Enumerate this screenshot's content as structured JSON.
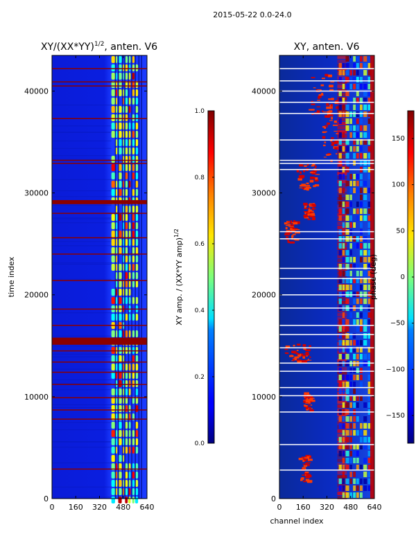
{
  "figure_title": "2015-05-22 0.0-24.0",
  "chart_data": [
    {
      "type": "heatmap",
      "title_main": "XY/(XX*YY)",
      "title_sup": "1/2",
      "title_suffix": ", anten. V6",
      "xlabel": "",
      "ylabel": "time index",
      "xlim": [
        0,
        640
      ],
      "ylim": [
        0,
        43500
      ],
      "x_ticks": [
        0,
        160,
        320,
        480,
        640
      ],
      "y_ticks": [
        0,
        10000,
        20000,
        30000,
        40000
      ],
      "x_tick_labels": [
        "0",
        "160",
        "320",
        "480",
        "640"
      ],
      "y_tick_labels": [
        "0",
        "10000",
        "20000",
        "30000",
        "40000"
      ],
      "colorbar": {
        "label_main": "XY amp. / (XX*YY amp)",
        "label_sup": "1/2",
        "range": [
          0.0,
          1.0
        ],
        "ticks": [
          0.0,
          0.2,
          0.4,
          0.6,
          0.8,
          1.0
        ],
        "tick_labels": [
          "0.0",
          "0.2",
          "0.4",
          "0.6",
          "0.8",
          "1.0"
        ]
      },
      "flagged_rows": [
        2900,
        7800,
        8700,
        9900,
        11200,
        12400,
        13400,
        14500,
        17000,
        18600,
        21400,
        24000,
        25600,
        28000,
        32900,
        33200,
        37300,
        40500,
        40900,
        42200
      ],
      "flagged_bands": [
        [
          15100,
          15800
        ],
        [
          28900,
          29300
        ]
      ]
    },
    {
      "type": "heatmap",
      "title_main": "XY, anten. V6",
      "xlabel": "channel index",
      "ylabel": "",
      "xlim": [
        0,
        640
      ],
      "ylim": [
        0,
        43500
      ],
      "x_ticks": [
        0,
        160,
        320,
        480,
        640
      ],
      "y_ticks": [
        0,
        10000,
        20000,
        30000,
        40000
      ],
      "x_tick_labels": [
        "0",
        "160",
        "320",
        "480",
        "640"
      ],
      "y_tick_labels": [
        "0",
        "10000",
        "20000",
        "30000",
        "40000"
      ],
      "colorbar": {
        "label_main": "phase (deg)",
        "range": [
          -180,
          180
        ],
        "ticks": [
          -150,
          -100,
          -50,
          0,
          50,
          100,
          150
        ],
        "tick_labels": [
          "−150",
          "−100",
          "−50",
          "0",
          "50",
          "100",
          "150"
        ]
      },
      "flagged_rows": [
        2800,
        5300,
        8500,
        10100,
        10900,
        12500,
        13300,
        14800,
        16100,
        17000,
        18700,
        20000,
        21600,
        22600,
        25500,
        26200,
        32300,
        32900,
        33200,
        35200,
        37800,
        38900,
        40000,
        41000,
        42200
      ],
      "red_patches": [
        [
          0.2,
          0.3,
          0.04,
          0.1
        ],
        [
          0.25,
          0.33,
          0.2,
          0.24
        ],
        [
          0.05,
          0.32,
          0.31,
          0.35
        ],
        [
          0.05,
          0.18,
          0.58,
          0.63
        ],
        [
          0.25,
          0.35,
          0.63,
          0.67
        ],
        [
          0.18,
          0.38,
          0.7,
          0.76
        ],
        [
          0.3,
          0.55,
          0.86,
          0.96
        ],
        [
          0.45,
          0.6,
          0.76,
          0.9
        ]
      ]
    }
  ]
}
